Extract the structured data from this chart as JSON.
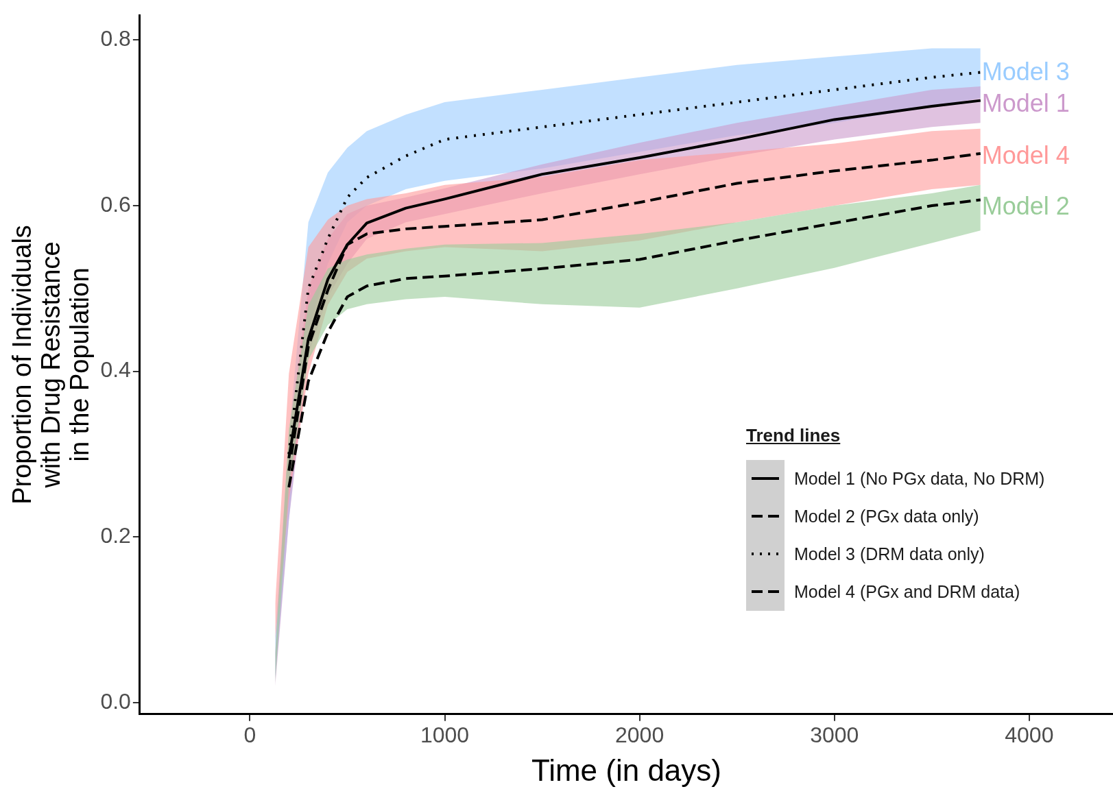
{
  "chart_data": {
    "type": "line",
    "xlabel": "Time (in days)",
    "ylabel": "Proportion of Individuals\nwith Drug Resistance\nin the Population",
    "legend_title": "Trend lines",
    "legend": "bottom right",
    "grid": false,
    "marker": "none",
    "x": [
      130,
      200,
      300,
      400,
      500,
      600,
      800,
      1000,
      1500,
      2000,
      2500,
      3000,
      3500,
      3750
    ],
    "xlim": [
      -565,
      4430
    ],
    "xticks": [
      0,
      1000,
      2000,
      3000,
      4000
    ],
    "ylim": [
      -0.014,
      0.83
    ],
    "yticks": [
      {
        "value": 0,
        "label": "0.0"
      },
      0.2,
      0.4,
      0.6,
      0.8
    ],
    "series": [
      {
        "name": "Model 3",
        "color": "#99ccff",
        "values": [
          null,
          null,
          null,
          null,
          null,
          null,
          null,
          null,
          null,
          null,
          null,
          null,
          null,
          null
        ],
        "upper": [
          0.08,
          0.32,
          0.58,
          0.64,
          0.67,
          0.69,
          0.71,
          0.725,
          0.74,
          0.755,
          0.77,
          0.78,
          0.79,
          0.79
        ],
        "lower": [
          0.03,
          0.22,
          0.45,
          0.53,
          0.58,
          0.6,
          0.62,
          0.63,
          0.645,
          0.665,
          0.685,
          0.7,
          0.72,
          0.73
        ]
      },
      {
        "name": "Model 1",
        "color": "#cc99cc",
        "values": [
          null,
          null,
          null,
          null,
          null,
          null,
          null,
          null,
          null,
          null,
          null,
          null,
          null,
          null
        ],
        "upper": [
          0.06,
          0.32,
          0.5,
          0.56,
          0.59,
          0.6,
          0.61,
          0.621,
          0.65,
          0.676,
          0.7,
          0.72,
          0.74,
          0.744
        ],
        "lower": [
          0.02,
          0.22,
          0.42,
          0.49,
          0.53,
          0.56,
          0.58,
          0.59,
          0.615,
          0.638,
          0.66,
          0.68,
          0.695,
          0.7
        ]
      },
      {
        "name": "Model 4",
        "color": "#ff9999",
        "values": [
          null,
          null,
          null,
          null,
          null,
          null,
          null,
          null,
          null,
          null,
          null,
          null,
          null,
          null
        ],
        "upper": [
          0.12,
          0.397,
          0.55,
          0.583,
          0.6,
          0.608,
          0.615,
          0.625,
          0.635,
          0.655,
          0.665,
          0.675,
          0.69,
          0.693
        ],
        "lower": [
          0.075,
          0.244,
          0.397,
          0.48,
          0.52,
          0.536,
          0.545,
          0.55,
          0.545,
          0.558,
          0.58,
          0.6,
          0.62,
          0.625
        ]
      },
      {
        "name": "Model 2",
        "color": "#99cc99",
        "values": [
          null,
          null,
          null,
          null,
          null,
          null,
          null,
          null,
          null,
          null,
          null,
          null,
          null,
          null
        ],
        "upper": [
          0.06,
          0.33,
          0.48,
          0.524,
          0.535,
          0.541,
          0.548,
          0.553,
          0.555,
          0.566,
          0.58,
          0.6,
          0.615,
          0.625
        ],
        "lower": [
          0.024,
          0.261,
          0.414,
          0.456,
          0.475,
          0.481,
          0.487,
          0.49,
          0.481,
          0.477,
          0.5,
          0.525,
          0.555,
          0.57
        ]
      },
      {
        "type": "line",
        "name": "Model 1 (No PGx data, No DRM)",
        "color": "#000000",
        "line_style": "solid",
        "values": [
          null,
          0.295,
          0.439,
          0.511,
          0.553,
          0.579,
          0.597,
          0.608,
          0.638,
          0.658,
          0.68,
          0.704,
          0.72,
          0.727
        ]
      },
      {
        "type": "line",
        "name": "Model 2 (PGx data only)",
        "color": "#000000",
        "line_style": "dashed",
        "values": [
          null,
          0.26,
          0.388,
          0.447,
          0.49,
          0.503,
          0.512,
          0.515,
          0.524,
          0.535,
          0.558,
          0.579,
          0.6,
          0.607
        ]
      },
      {
        "type": "line",
        "name": "Model 3 (DRM data only)",
        "color": "#000000",
        "line_style": "dotted",
        "values": [
          null,
          0.3,
          0.5,
          0.56,
          0.61,
          0.634,
          0.66,
          0.68,
          0.695,
          0.71,
          0.725,
          0.74,
          0.755,
          0.761
        ]
      },
      {
        "type": "line",
        "name": "Model 4 (PGx and DRM data)",
        "color": "#000000",
        "line_style": "dashed",
        "values": [
          null,
          0.28,
          0.43,
          0.498,
          0.553,
          0.566,
          0.572,
          0.575,
          0.583,
          0.604,
          0.627,
          0.642,
          0.655,
          0.663
        ]
      }
    ]
  }
}
